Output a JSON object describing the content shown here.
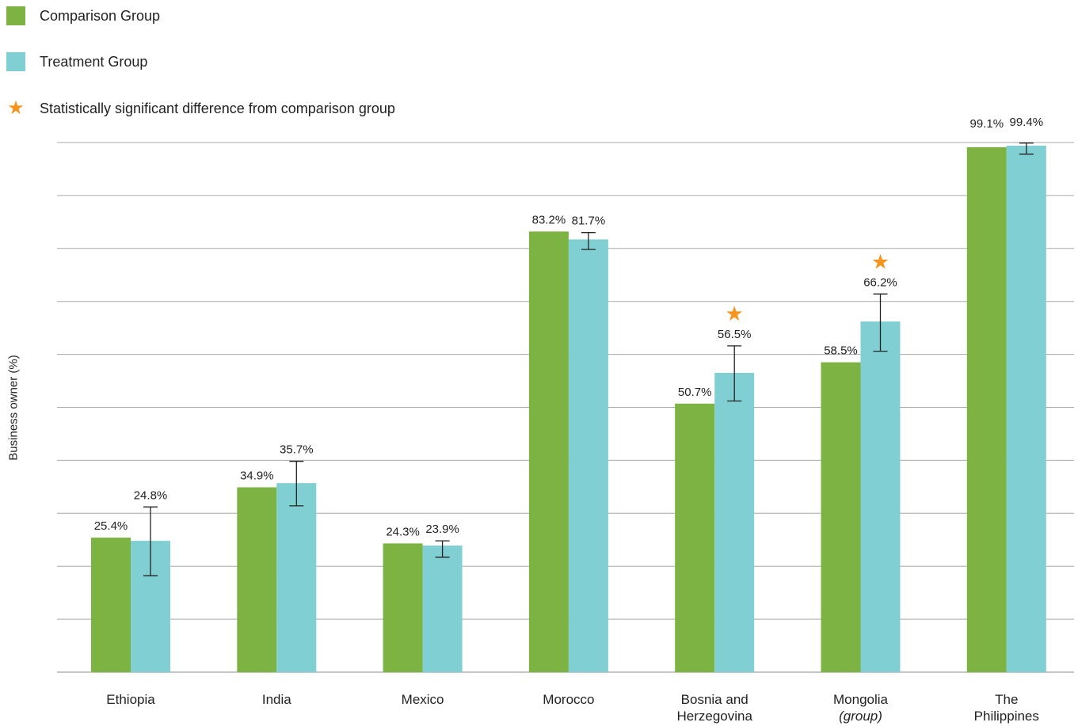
{
  "legend": {
    "items": [
      {
        "label": "Comparison Group",
        "color": "#7cb342",
        "icon": "square-swatch"
      },
      {
        "label": "Treatment Group",
        "color": "#80d0d3",
        "icon": "square-swatch"
      },
      {
        "label": "Statistically significant difference from comparison group",
        "color": "#f7941d",
        "icon": "star-icon"
      }
    ]
  },
  "chart_data": {
    "type": "bar",
    "ylabel": "Business owner (%)",
    "ylim": [
      0,
      100
    ],
    "grid": true,
    "legend_position": "top-left",
    "categories": [
      [
        "Ethiopia"
      ],
      [
        "India"
      ],
      [
        "Mexico"
      ],
      [
        "Morocco"
      ],
      [
        "Bosnia and",
        "Herzegovina"
      ],
      [
        "Mongolia",
        "(group)"
      ],
      [
        "The",
        "Philippines"
      ]
    ],
    "category_italic_second_line": [
      false,
      false,
      false,
      false,
      false,
      true,
      false
    ],
    "series": [
      {
        "name": "Comparison Group",
        "color": "#7cb342",
        "values": [
          25.4,
          34.9,
          24.3,
          83.2,
          50.7,
          58.5,
          99.1
        ],
        "labels": [
          "25.4%",
          "34.9%",
          "24.3%",
          "83.2%",
          "50.7%",
          "58.5%",
          "99.1%"
        ]
      },
      {
        "name": "Treatment Group",
        "color": "#80d0d3",
        "values": [
          24.8,
          35.7,
          23.9,
          81.7,
          56.5,
          66.2,
          99.4
        ],
        "labels": [
          "24.8%",
          "35.7%",
          "23.9%",
          "81.7%",
          "56.5%",
          "66.2%",
          "99.4%"
        ],
        "error_low": [
          18.2,
          31.4,
          21.7,
          79.8,
          51.2,
          60.6,
          97.8
        ],
        "error_high": [
          31.2,
          39.8,
          24.8,
          83.0,
          61.6,
          71.4,
          99.9
        ],
        "significant": [
          false,
          false,
          false,
          false,
          true,
          true,
          false
        ]
      }
    ],
    "significance_color": "#f7941d"
  }
}
